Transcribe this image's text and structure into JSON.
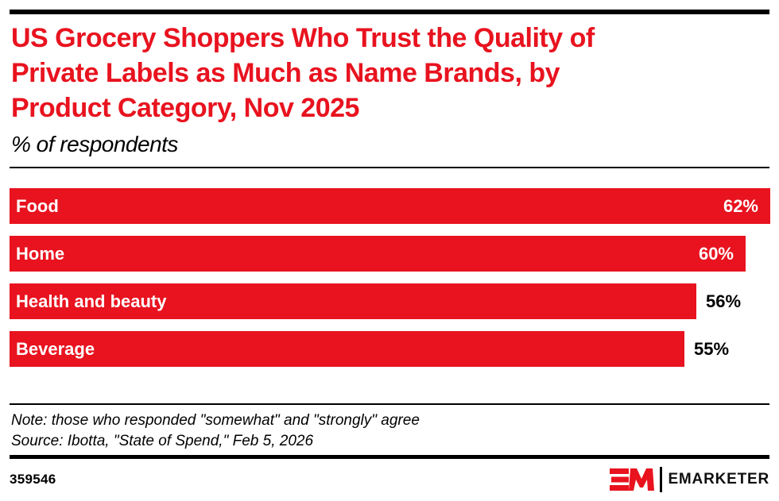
{
  "page": {
    "background": "#FFFFFF",
    "accent_red": "#E8131F",
    "text_black": "#000000"
  },
  "header": {
    "title_lines": [
      "US Grocery Shoppers Who Trust the Quality of",
      "Private Labels as Much as Name Brands, by",
      "Product Category, Nov 2025"
    ],
    "subtitle": "% of respondents"
  },
  "chart_data": {
    "type": "bar",
    "orientation": "horizontal",
    "title": "US Grocery Shoppers Who Trust the Quality of Private Labels as Much as Name Brands, by Product Category, Nov 2025",
    "subtitle": "% of respondents",
    "categories": [
      "Food",
      "Home",
      "Health and beauty",
      "Beverage"
    ],
    "values": [
      62,
      60,
      56,
      55
    ],
    "value_labels": [
      "62%",
      "60%",
      "56%",
      "55%"
    ],
    "value_label_positions": [
      "inside",
      "inside",
      "outside",
      "outside"
    ],
    "xlim": [
      0,
      62
    ],
    "bar_color": "#E8131F",
    "value_label_color_inside": "#FFFFFF",
    "value_label_color_outside": "#000000",
    "grid": false,
    "legend": false
  },
  "footer": {
    "note": "Note: those who responded \"somewhat\" and \"strongly\" agree",
    "source": "Source: Ibotta, \"State of Spend,\" Feb 5, 2026",
    "chart_id": "359546",
    "logo_mark": "EM",
    "brand": "EMARKETER"
  }
}
